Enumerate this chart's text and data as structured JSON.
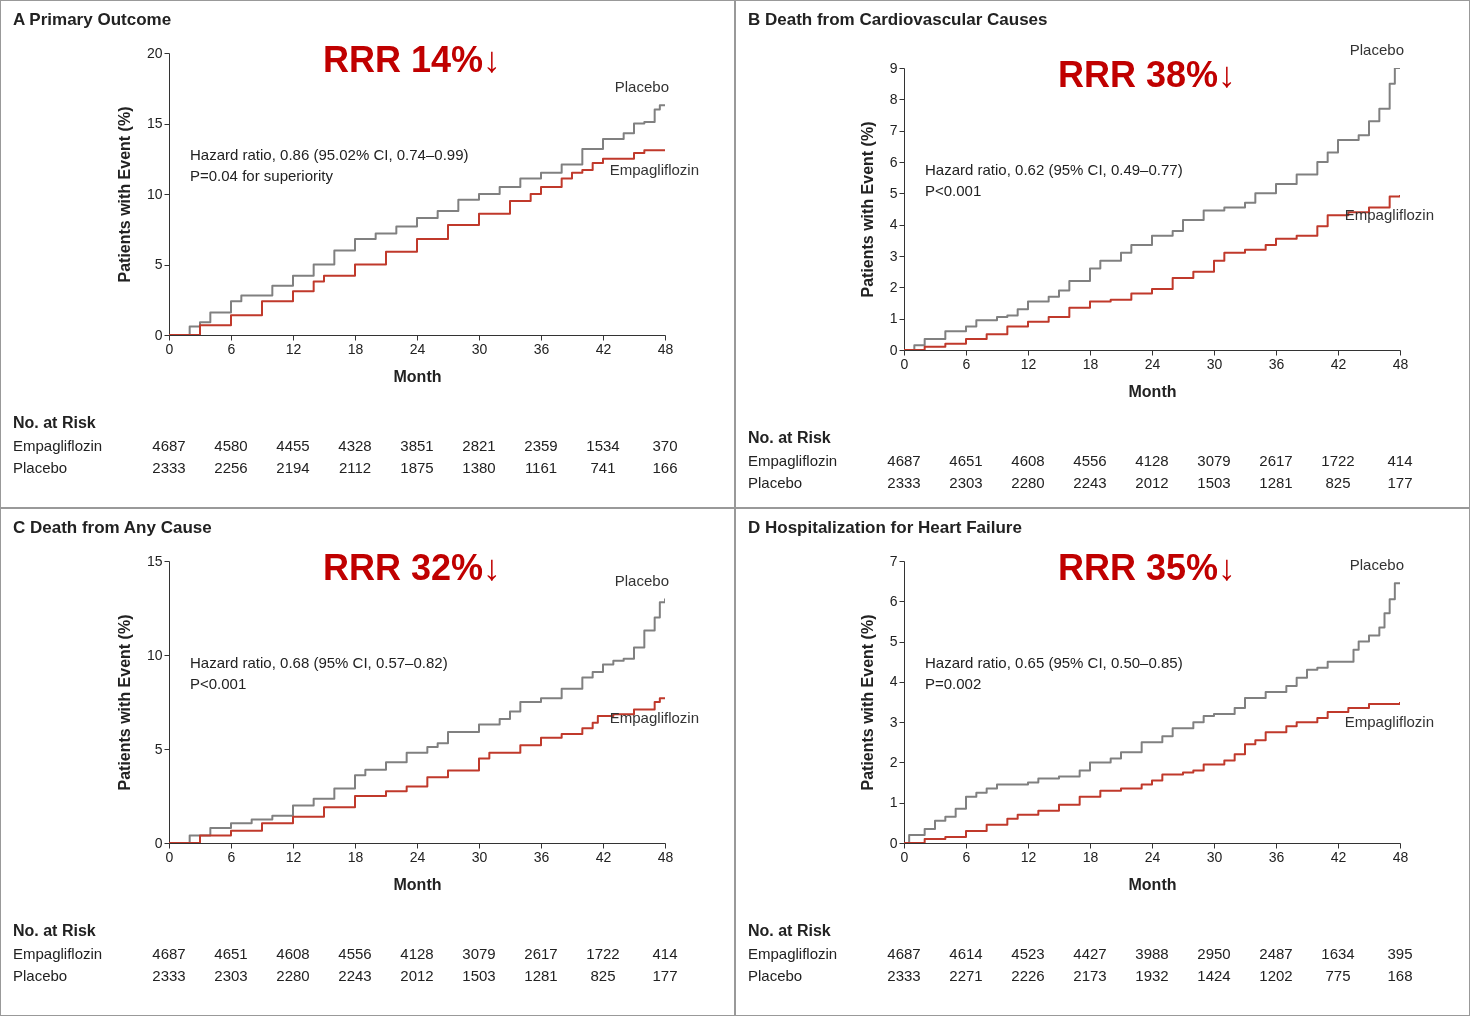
{
  "chart_data": [
    {
      "type": "step",
      "title": "A  Primary Outcome",
      "xlabel": "Month",
      "ylabel": "Patients with Event (%)",
      "xlim": [
        0,
        48
      ],
      "xticks": [
        0,
        6,
        12,
        18,
        24,
        30,
        36,
        42,
        48
      ],
      "ylim": [
        0,
        20
      ],
      "yticks": [
        0,
        5,
        10,
        15,
        20
      ],
      "grid": false,
      "series": [
        {
          "name": "Placebo",
          "color": "#808080",
          "x": [
            0,
            2,
            3,
            4,
            6,
            7,
            10,
            12,
            14,
            16,
            18,
            20,
            22,
            24,
            26,
            28,
            30,
            32,
            34,
            36,
            38,
            40,
            42,
            44,
            45,
            46,
            47,
            47.5,
            48
          ],
          "values": [
            0,
            0.6,
            0.9,
            1.6,
            2.4,
            2.8,
            3.5,
            4.2,
            5.0,
            6.0,
            6.8,
            7.2,
            7.7,
            8.3,
            8.8,
            9.6,
            10.0,
            10.5,
            11.1,
            11.5,
            12.1,
            13.2,
            13.9,
            14.3,
            15.0,
            15.1,
            16.0,
            16.3,
            16.3
          ]
        },
        {
          "name": "Empagliflozin",
          "color": "#c0392b",
          "x": [
            0,
            3,
            6,
            9,
            12,
            14,
            15,
            18,
            21,
            24,
            27,
            30,
            33,
            35,
            36,
            38,
            39,
            40,
            41,
            42,
            43,
            45,
            46,
            48
          ],
          "values": [
            0,
            0.7,
            1.4,
            2.4,
            3.1,
            3.8,
            4.2,
            5.0,
            5.9,
            6.8,
            7.8,
            8.6,
            9.5,
            10.0,
            10.5,
            11.1,
            11.5,
            11.7,
            12.2,
            12.5,
            12.5,
            12.9,
            13.1,
            13.1
          ]
        }
      ],
      "annotations": [
        "RRR 14%↓",
        "Hazard ratio, 0.86 (95.02% CI, 0.74–0.99)",
        "P=0.04 for superiority",
        "No. at Risk",
        "Empagliflozin",
        "Placebo",
        "4687",
        "4580",
        "4455",
        "4328",
        "3851",
        "2821",
        "2359",
        "1534",
        "370",
        "2333",
        "2256",
        "2194",
        "2112",
        "1875",
        "1380",
        "1161",
        "741",
        "166"
      ]
    },
    {
      "type": "step",
      "title": "B  Death from Cardiovascular Causes",
      "xlabel": "Month",
      "ylabel": "Patients with Event (%)",
      "xlim": [
        0,
        48
      ],
      "xticks": [
        0,
        6,
        12,
        18,
        24,
        30,
        36,
        42,
        48
      ],
      "ylim": [
        0,
        9
      ],
      "yticks": [
        0,
        1,
        2,
        3,
        4,
        5,
        6,
        7,
        8,
        9
      ],
      "grid": false,
      "series": [
        {
          "name": "Placebo",
          "color": "#808080",
          "x": [
            0,
            1,
            2,
            4,
            6,
            7,
            9,
            10,
            11,
            12,
            14,
            15,
            16,
            18,
            19,
            21,
            22,
            24,
            26,
            27,
            29,
            31,
            33,
            34,
            36,
            38,
            40,
            41,
            42,
            44,
            45,
            46,
            47,
            47.5,
            48
          ],
          "values": [
            0,
            0.15,
            0.35,
            0.6,
            0.75,
            0.95,
            1.05,
            1.1,
            1.3,
            1.55,
            1.7,
            1.9,
            2.2,
            2.6,
            2.85,
            3.1,
            3.35,
            3.65,
            3.8,
            4.15,
            4.45,
            4.55,
            4.7,
            5.0,
            5.3,
            5.6,
            6.0,
            6.3,
            6.7,
            6.85,
            7.3,
            7.7,
            8.5,
            9.0,
            9.0
          ]
        },
        {
          "name": "Empagliflozin",
          "color": "#c0392b",
          "x": [
            0,
            2,
            4,
            6,
            8,
            10,
            12,
            14,
            16,
            18,
            20,
            22,
            24,
            26,
            28,
            30,
            31,
            33,
            35,
            36,
            38,
            40,
            41,
            43,
            45,
            47,
            48
          ],
          "values": [
            0,
            0.1,
            0.2,
            0.35,
            0.5,
            0.75,
            0.9,
            1.05,
            1.35,
            1.55,
            1.6,
            1.8,
            1.95,
            2.3,
            2.5,
            2.85,
            3.1,
            3.2,
            3.35,
            3.55,
            3.65,
            3.95,
            4.3,
            4.4,
            4.55,
            4.9,
            4.95
          ]
        }
      ],
      "annotations": [
        "RRR 38%↓",
        "Hazard ratio, 0.62 (95% CI, 0.49–0.77)",
        "P<0.001",
        "No. at Risk",
        "Empagliflozin",
        "Placebo",
        "4687",
        "4651",
        "4608",
        "4556",
        "4128",
        "3079",
        "2617",
        "1722",
        "414",
        "2333",
        "2303",
        "2280",
        "2243",
        "2012",
        "1503",
        "1281",
        "825",
        "177"
      ]
    },
    {
      "type": "step",
      "title": "C  Death from Any Cause",
      "xlabel": "Month",
      "ylabel": "Patients with Event (%)",
      "xlim": [
        0,
        48
      ],
      "xticks": [
        0,
        6,
        12,
        18,
        24,
        30,
        36,
        42,
        48
      ],
      "ylim": [
        0,
        15
      ],
      "yticks": [
        0,
        5,
        10,
        15
      ],
      "grid": false,
      "series": [
        {
          "name": "Placebo",
          "color": "#808080",
          "x": [
            0,
            2,
            4,
            6,
            8,
            10,
            12,
            14,
            16,
            18,
            19,
            21,
            23,
            25,
            26,
            27,
            30,
            32,
            33,
            34,
            36,
            38,
            40,
            41,
            42,
            43,
            44,
            45,
            46,
            47,
            47.5,
            48
          ],
          "values": [
            0,
            0.4,
            0.8,
            1.05,
            1.25,
            1.45,
            2.0,
            2.35,
            2.9,
            3.6,
            3.9,
            4.3,
            4.8,
            5.1,
            5.3,
            5.9,
            6.3,
            6.6,
            7.0,
            7.5,
            7.7,
            8.2,
            8.8,
            9.1,
            9.5,
            9.7,
            9.8,
            10.4,
            11.3,
            12.0,
            12.8,
            13.0
          ]
        },
        {
          "name": "Empagliflozin",
          "color": "#c0392b",
          "x": [
            0,
            3,
            6,
            9,
            12,
            15,
            18,
            21,
            23,
            25,
            27,
            30,
            31,
            34,
            36,
            38,
            40,
            41,
            41.5,
            43,
            45,
            47,
            47.5,
            48
          ],
          "values": [
            0,
            0.4,
            0.65,
            1.05,
            1.4,
            1.9,
            2.5,
            2.75,
            3.0,
            3.5,
            3.85,
            4.5,
            4.8,
            5.2,
            5.6,
            5.8,
            6.1,
            6.4,
            6.75,
            6.85,
            7.1,
            7.5,
            7.7,
            7.7
          ]
        }
      ],
      "annotations": [
        "RRR 32%↓",
        "Hazard ratio, 0.68 (95% CI, 0.57–0.82)",
        "P<0.001",
        "No. at Risk",
        "Empagliflozin",
        "Placebo",
        "4687",
        "4651",
        "4608",
        "4556",
        "4128",
        "3079",
        "2617",
        "1722",
        "414",
        "2333",
        "2303",
        "2280",
        "2243",
        "2012",
        "1503",
        "1281",
        "825",
        "177"
      ]
    },
    {
      "type": "step",
      "title": "D  Hospitalization for Heart Failure",
      "xlabel": "Month",
      "ylabel": "Patients with Event (%)",
      "xlim": [
        0,
        48
      ],
      "xticks": [
        0,
        6,
        12,
        18,
        24,
        30,
        36,
        42,
        48
      ],
      "ylim": [
        0,
        7
      ],
      "yticks": [
        0,
        1,
        2,
        3,
        4,
        5,
        6,
        7
      ],
      "grid": false,
      "series": [
        {
          "name": "Placebo",
          "color": "#808080",
          "x": [
            0,
            0.5,
            2,
            3,
            4,
            5,
            6,
            7,
            8,
            9,
            12,
            13,
            15,
            17,
            18,
            20,
            21,
            23,
            25,
            26,
            28,
            29,
            30,
            32,
            33,
            35,
            37,
            38,
            39,
            40,
            41,
            43.5,
            44,
            45,
            46,
            46.5,
            47,
            47.5,
            48
          ],
          "values": [
            0,
            0.2,
            0.35,
            0.55,
            0.65,
            0.85,
            1.15,
            1.25,
            1.35,
            1.45,
            1.5,
            1.6,
            1.65,
            1.8,
            2.0,
            2.1,
            2.25,
            2.5,
            2.65,
            2.85,
            3.0,
            3.15,
            3.2,
            3.35,
            3.6,
            3.75,
            3.9,
            4.1,
            4.3,
            4.35,
            4.5,
            4.8,
            5.0,
            5.15,
            5.35,
            5.7,
            6.05,
            6.45,
            6.45
          ]
        },
        {
          "name": "Empagliflozin",
          "color": "#c0392b",
          "x": [
            0,
            2,
            4,
            6,
            8,
            10,
            11,
            13,
            15,
            17,
            19,
            21,
            23,
            24,
            25,
            27,
            28,
            29,
            31,
            32,
            33,
            34,
            35,
            37,
            38,
            40,
            41,
            43,
            45,
            48
          ],
          "values": [
            0,
            0.1,
            0.15,
            0.3,
            0.45,
            0.6,
            0.7,
            0.8,
            0.95,
            1.15,
            1.3,
            1.35,
            1.45,
            1.55,
            1.7,
            1.75,
            1.8,
            1.95,
            2.05,
            2.2,
            2.45,
            2.55,
            2.75,
            2.9,
            3.0,
            3.1,
            3.25,
            3.35,
            3.45,
            3.5
          ]
        }
      ],
      "annotations": [
        "RRR 35%↓",
        "Hazard ratio, 0.65 (95% CI, 0.50–0.85)",
        "P=0.002",
        "No. at Risk",
        "Empagliflozin",
        "Placebo",
        "4687",
        "4614",
        "4523",
        "4427",
        "3988",
        "2950",
        "2487",
        "1634",
        "395",
        "2333",
        "2271",
        "2226",
        "2173",
        "1932",
        "1424",
        "1202",
        "775",
        "168"
      ]
    }
  ]
}
